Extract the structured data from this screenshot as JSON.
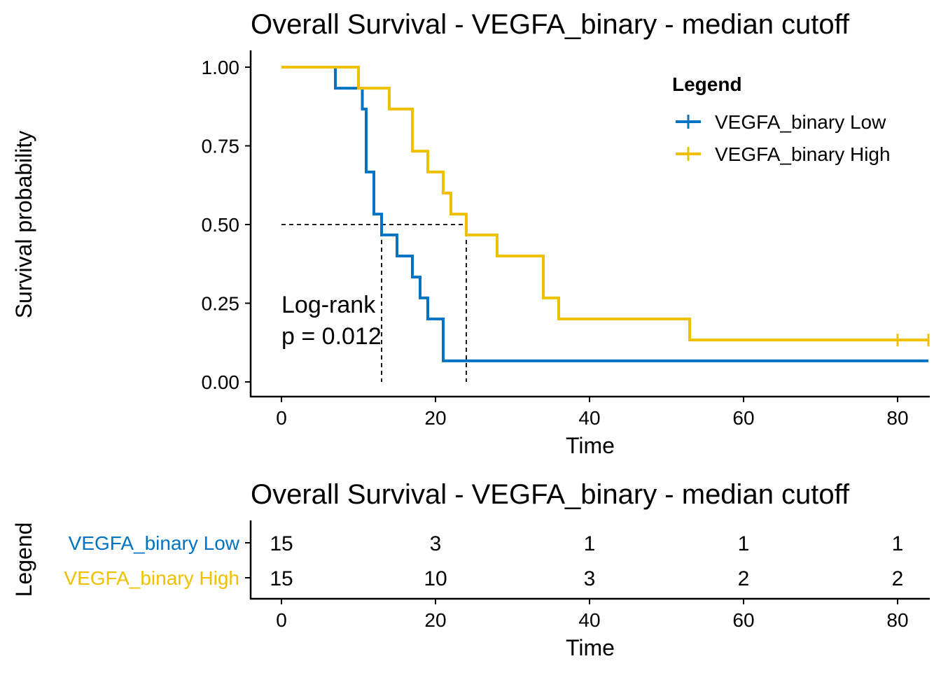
{
  "colors": {
    "low": "#0073C2",
    "high": "#EFC000",
    "axis": "#000000"
  },
  "chart_data": [
    {
      "type": "line",
      "subtype": "kaplan-meier",
      "title": "Overall Survival - VEGFA_binary  - median cutoff",
      "xlabel": "Time",
      "ylabel": "Survival probability",
      "xlim": [
        -2,
        84
      ],
      "ylim": [
        0,
        1
      ],
      "x_ticks": [
        0,
        20,
        40,
        60,
        80
      ],
      "x_tick_labels": [
        "0",
        "20",
        "40",
        "60",
        "80"
      ],
      "y_ticks": [
        0,
        0.25,
        0.5,
        0.75,
        1.0
      ],
      "y_tick_labels": [
        "0.00",
        "0.25",
        "0.50",
        "0.75",
        "1.00"
      ],
      "grid": false,
      "legend": {
        "title": "Legend",
        "placement": "top-right",
        "entries": [
          "VEGFA_binary Low",
          "VEGFA_binary High"
        ]
      },
      "series": [
        {
          "name": "VEGFA_binary Low",
          "color_key": "low",
          "steps": [
            [
              0,
              1.0
            ],
            [
              7,
              0.933
            ],
            [
              10.5,
              0.867
            ],
            [
              11,
              0.667
            ],
            [
              12,
              0.533
            ],
            [
              13,
              0.467
            ],
            [
              15,
              0.4
            ],
            [
              17,
              0.333
            ],
            [
              18,
              0.267
            ],
            [
              19,
              0.2
            ],
            [
              21,
              0.067
            ],
            [
              84,
              0.067
            ]
          ],
          "censored": []
        },
        {
          "name": "VEGFA_binary High",
          "color_key": "high",
          "steps": [
            [
              0,
              1.0
            ],
            [
              10,
              0.933
            ],
            [
              14,
              0.867
            ],
            [
              17,
              0.733
            ],
            [
              19,
              0.667
            ],
            [
              21,
              0.6
            ],
            [
              22,
              0.533
            ],
            [
              24,
              0.467
            ],
            [
              28,
              0.4
            ],
            [
              34,
              0.267
            ],
            [
              36,
              0.2
            ],
            [
              53,
              0.133
            ],
            [
              84,
              0.133
            ]
          ],
          "censored": [
            [
              80,
              0.133
            ],
            [
              84,
              0.133
            ]
          ]
        }
      ],
      "median_lines": {
        "y": 0.5,
        "x_values": [
          13,
          24
        ]
      },
      "annotation": {
        "line1": "Log-rank",
        "line2": "p = 0.012",
        "x": 0,
        "y_top": 0.25
      }
    },
    {
      "type": "table",
      "subtype": "risk-table",
      "title": "Overall Survival - VEGFA_binary  - median cutoff",
      "xlabel": "Time",
      "ylabel": "Legend",
      "xlim": [
        -2,
        84
      ],
      "x_ticks": [
        0,
        20,
        40,
        60,
        80
      ],
      "x_tick_labels": [
        "0",
        "20",
        "40",
        "60",
        "80"
      ],
      "rows": [
        {
          "label": "VEGFA_binary Low",
          "color_key": "low",
          "values": [
            15,
            3,
            1,
            1,
            1
          ]
        },
        {
          "label": "VEGFA_binary High",
          "color_key": "high",
          "values": [
            15,
            10,
            3,
            2,
            2
          ]
        }
      ]
    }
  ]
}
